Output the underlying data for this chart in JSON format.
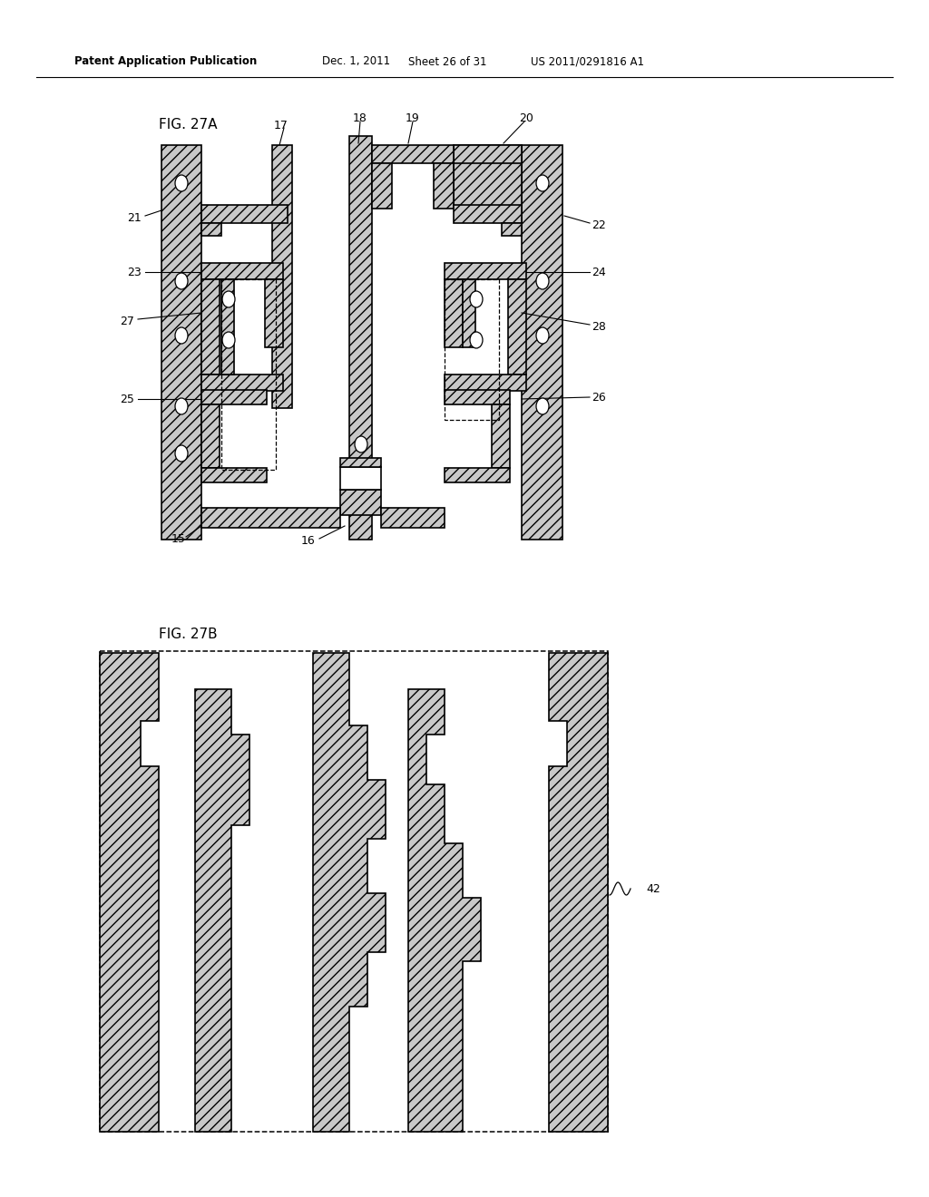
{
  "bg": "#ffffff",
  "lc": "#000000",
  "hc": "#c8c8c8",
  "hp": "///",
  "header_left": "Patent Application Publication",
  "header_mid1": "Dec. 1, 2011",
  "header_mid2": "Sheet 26 of 31",
  "header_right": "US 2011/0291816 A1",
  "fig27a": "FIG. 27A",
  "fig27b": "FIG. 27B",
  "label_fs": 9,
  "fig_label_fs": 11
}
